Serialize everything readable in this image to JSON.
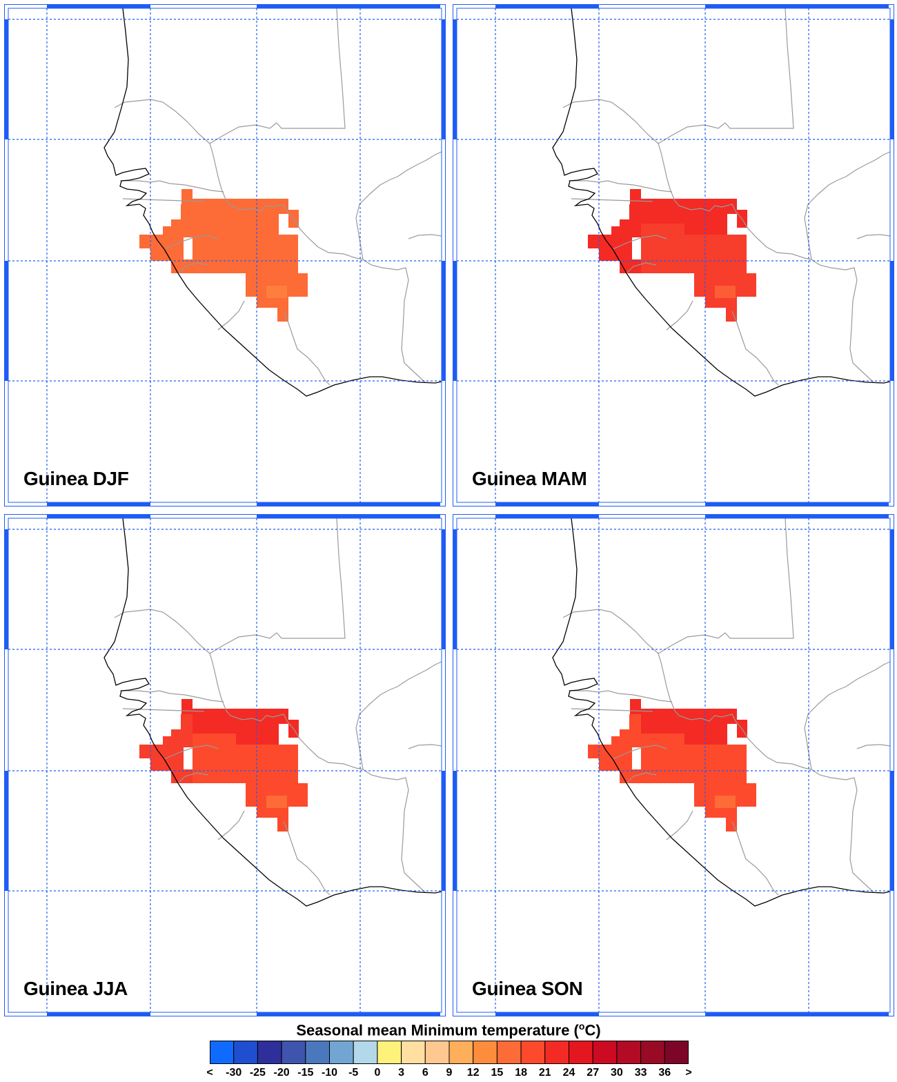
{
  "panels": [
    {
      "label": "Guinea DJF",
      "season": "DJF",
      "shades": [
        "#fd6b37",
        "#fd6b37",
        "#fd6b37",
        "#f74b31",
        "#fe7f3d"
      ]
    },
    {
      "label": "Guinea MAM",
      "season": "MAM",
      "shades": [
        "#f42a24",
        "#f42a24",
        "#f73d2b",
        "#f42a24",
        "#fd5d35"
      ]
    },
    {
      "label": "Guinea JJA",
      "season": "JJA",
      "shades": [
        "#f42a24",
        "#f73d2b",
        "#fd4a2c",
        "#f42a24",
        "#fd6b37"
      ]
    },
    {
      "label": "Guinea SON",
      "season": "SON",
      "shades": [
        "#f42a24",
        "#fd4a2c",
        "#fd4a2c",
        "#f42a24",
        "#fd6b37"
      ]
    }
  ],
  "legend": {
    "title_text": "Seasonal mean Minimum temperature (",
    "title_sup": "o",
    "title_unit": "C)",
    "tick_labels": [
      "<",
      "-30",
      "-25",
      "-20",
      "-15",
      "-10",
      "-5",
      "0",
      "3",
      "6",
      "9",
      "12",
      "15",
      "18",
      "21",
      "24",
      "27",
      "30",
      "33",
      "36",
      ">"
    ],
    "colors": [
      "#0f6bff",
      "#1f4fd0",
      "#2e2f9a",
      "#3f55ad",
      "#4a78bd",
      "#73a5d2",
      "#b3d8ea",
      "#fff27a",
      "#ffe0a0",
      "#ffc890",
      "#ffae5a",
      "#fd8d3c",
      "#fd6b37",
      "#fd4a2c",
      "#f42a24",
      "#e4161f",
      "#cc0a22",
      "#b30a26",
      "#990a25",
      "#7d0628"
    ]
  },
  "map_style": {
    "coast_color": "#000000",
    "border_color": "#9a9a9a",
    "grid_color": "#1f5cf5",
    "frame_color": "#1f5cf5"
  }
}
